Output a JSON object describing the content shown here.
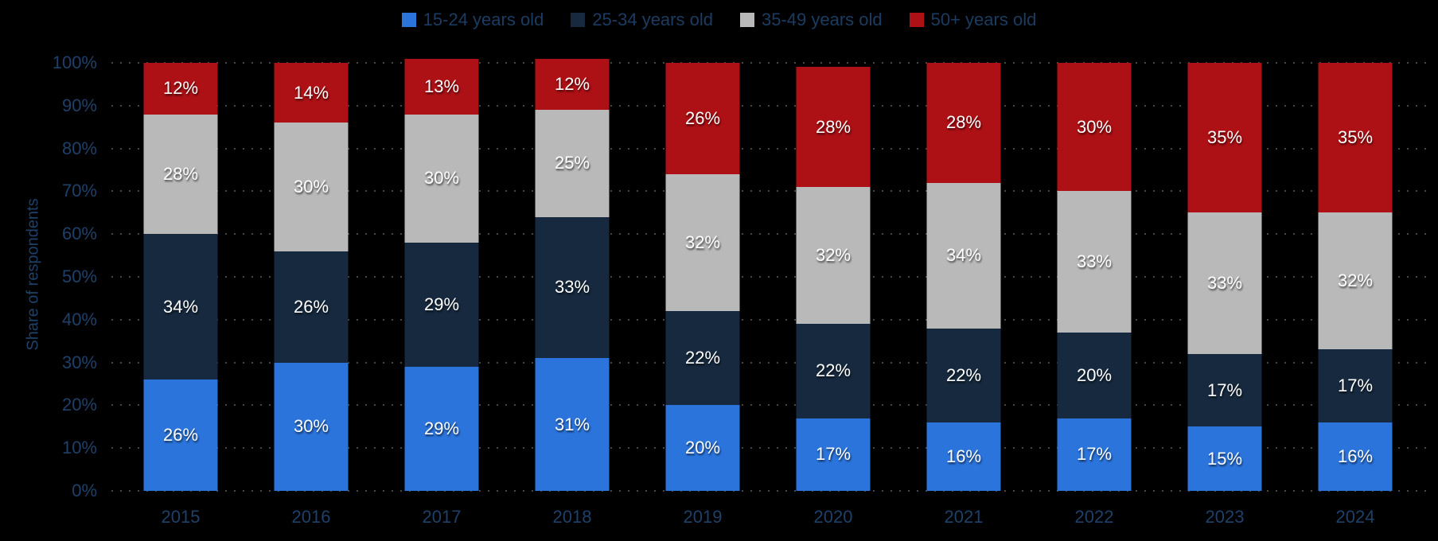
{
  "colors": {
    "background": "#000000",
    "axis_text": "#1f4068",
    "legend_text": "#1b3c60",
    "grid": "#474747",
    "value_label": "#ffffff"
  },
  "chart_data": {
    "type": "bar",
    "stacked": true,
    "title": "",
    "xlabel": "",
    "ylabel": "Share of respondents",
    "ylim": [
      0,
      100
    ],
    "grid": "dotted-horizontal",
    "legend_position": "top",
    "value_suffix": "%",
    "categories": [
      "2015",
      "2016",
      "2017",
      "2018",
      "2019",
      "2020",
      "2021",
      "2022",
      "2023",
      "2024"
    ],
    "yticks": [
      "0%",
      "10%",
      "20%",
      "30%",
      "40%",
      "50%",
      "60%",
      "70%",
      "80%",
      "90%",
      "100%"
    ],
    "series": [
      {
        "name": "15-24 years old",
        "color": "#2b74dc",
        "values": [
          26,
          30,
          29,
          31,
          20,
          17,
          16,
          17,
          15,
          16
        ]
      },
      {
        "name": "25-34 years old",
        "color": "#16293e",
        "values": [
          34,
          26,
          29,
          33,
          22,
          22,
          22,
          20,
          17,
          17
        ]
      },
      {
        "name": "35-49 years old",
        "color": "#b9b9b9",
        "values": [
          28,
          30,
          30,
          25,
          32,
          32,
          34,
          33,
          33,
          32
        ]
      },
      {
        "name": "50+ years old",
        "color": "#ad1015",
        "values": [
          12,
          14,
          13,
          12,
          26,
          28,
          28,
          30,
          35,
          35
        ]
      }
    ]
  }
}
